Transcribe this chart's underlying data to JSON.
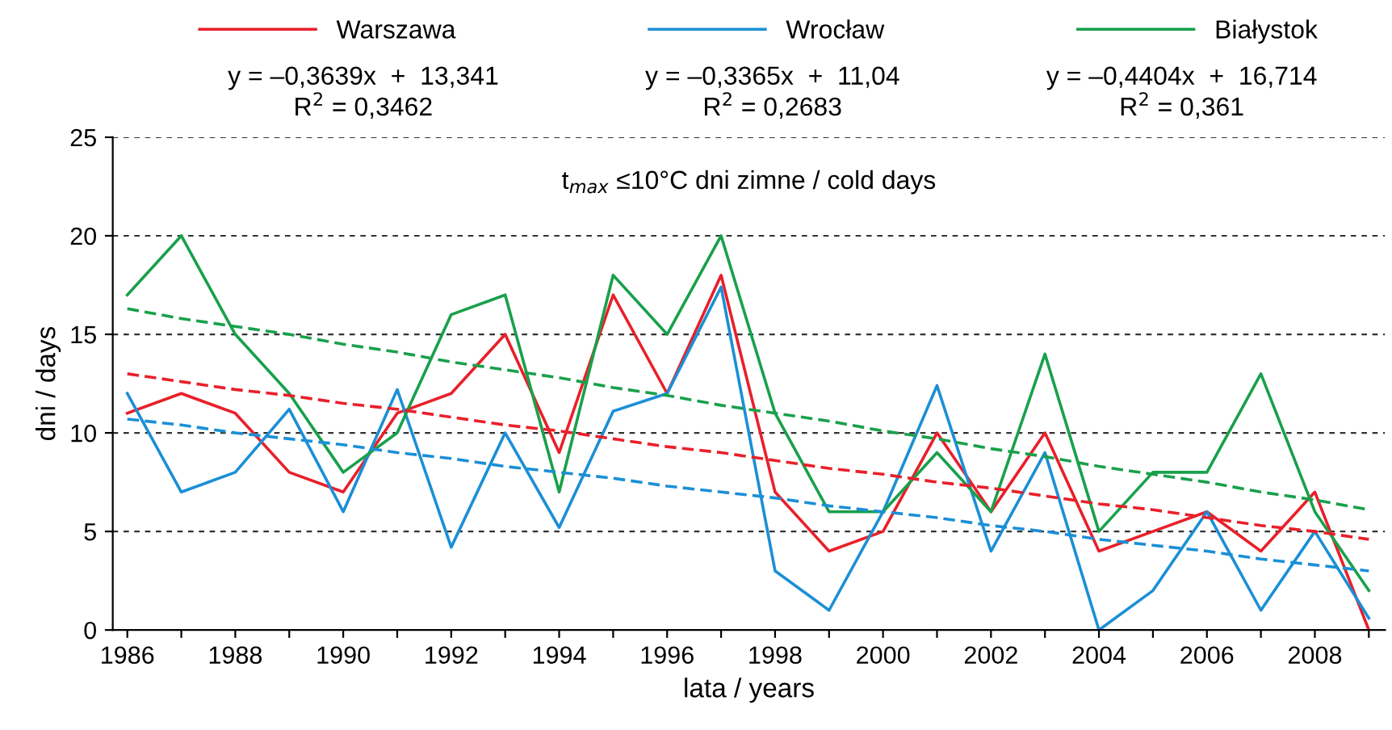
{
  "chart_data": {
    "type": "line",
    "subtitle": "t$_{max}$ ≤10°C dni zimne / cold days",
    "xlabel": "lata / years",
    "ylabel": "dni / days",
    "x": [
      1986,
      1987,
      1988,
      1989,
      1990,
      1991,
      1992,
      1993,
      1994,
      1995,
      1996,
      1997,
      1998,
      1999,
      2000,
      2001,
      2002,
      2003,
      2004,
      2005,
      2006,
      2007,
      2008,
      2009
    ],
    "series": [
      {
        "name": "Warszawa",
        "color": "#e8202a",
        "values": [
          11,
          12,
          11,
          8,
          7,
          11,
          12,
          15,
          9,
          17,
          12,
          18,
          7,
          4,
          5,
          10,
          6,
          10,
          4,
          5,
          6,
          4,
          7,
          0
        ]
      },
      {
        "name": "Wrocław",
        "color": "#1b8fd6",
        "values": [
          12,
          7,
          8,
          11.2,
          6,
          12.2,
          4.2,
          10,
          5.2,
          11.1,
          12,
          17.4,
          3,
          1,
          6,
          12.4,
          4,
          9,
          0,
          2,
          6,
          1,
          5,
          0.6
        ]
      },
      {
        "name": "Białystok",
        "color": "#19a04b",
        "values": [
          17,
          20,
          15,
          12,
          8,
          10,
          16,
          17,
          7,
          18,
          15,
          20,
          11,
          6,
          6,
          9,
          6,
          14,
          5,
          8,
          8,
          13,
          6,
          2
        ]
      },
      {
        "type": "line",
        "line_style": "dashed",
        "color": "#e8202a",
        "values": [
          13.0,
          12.6,
          12.2,
          11.9,
          11.5,
          11.2,
          10.8,
          10.4,
          10.1,
          9.7,
          9.3,
          9.0,
          8.6,
          8.2,
          7.9,
          7.5,
          7.2,
          6.8,
          6.4,
          6.1,
          5.7,
          5.3,
          5.0,
          4.6
        ]
      },
      {
        "type": "line",
        "line_style": "dashed",
        "color": "#1b8fd6",
        "values": [
          10.7,
          10.4,
          10.0,
          9.7,
          9.4,
          9.0,
          8.7,
          8.3,
          8.0,
          7.7,
          7.3,
          7.0,
          6.7,
          6.3,
          6.0,
          5.7,
          5.3,
          5.0,
          4.6,
          4.3,
          4.0,
          3.6,
          3.3,
          3.0
        ]
      },
      {
        "type": "line",
        "line_style": "dashed",
        "color": "#19a04b",
        "values": [
          16.3,
          15.8,
          15.4,
          15.0,
          14.5,
          14.1,
          13.6,
          13.2,
          12.8,
          12.3,
          11.9,
          11.4,
          11.0,
          10.6,
          10.1,
          9.7,
          9.2,
          8.8,
          8.3,
          7.9,
          7.5,
          7.0,
          6.6,
          6.1
        ]
      }
    ],
    "annotations": [
      "y = –0,3639x  +  13,341\nR$^{2}$ = 0,3462",
      "y = –0,3365x  +  11,04\nR$^{2}$ = 0,2683",
      "y = –0,4404x  +  16,714\nR$^{2}$ = 0,361"
    ],
    "xlim": [
      1985.73,
      2009.3
    ],
    "ylim": [
      0,
      25
    ],
    "xticks": [
      1986,
      {
        "value": 1987,
        "label": null
      },
      1988,
      {
        "value": 1989,
        "label": null
      },
      1990,
      {
        "value": 1991,
        "label": null
      },
      1992,
      {
        "value": 1993,
        "label": null
      },
      1994,
      {
        "value": 1995,
        "label": null
      },
      1996,
      {
        "value": 1997,
        "label": null
      },
      1998,
      {
        "value": 1999,
        "label": null
      },
      2000,
      {
        "value": 2001,
        "label": null
      },
      2002,
      {
        "value": 2003,
        "label": null
      },
      2004,
      {
        "value": 2005,
        "label": null
      },
      2006,
      {
        "value": 2007,
        "label": null
      },
      2008,
      {
        "value": 2009,
        "label": null
      }
    ],
    "yticks": [
      0,
      5,
      10,
      15,
      20,
      25
    ],
    "grid": "y",
    "legend": "top",
    "line_style": "solid",
    "marker": "none"
  }
}
